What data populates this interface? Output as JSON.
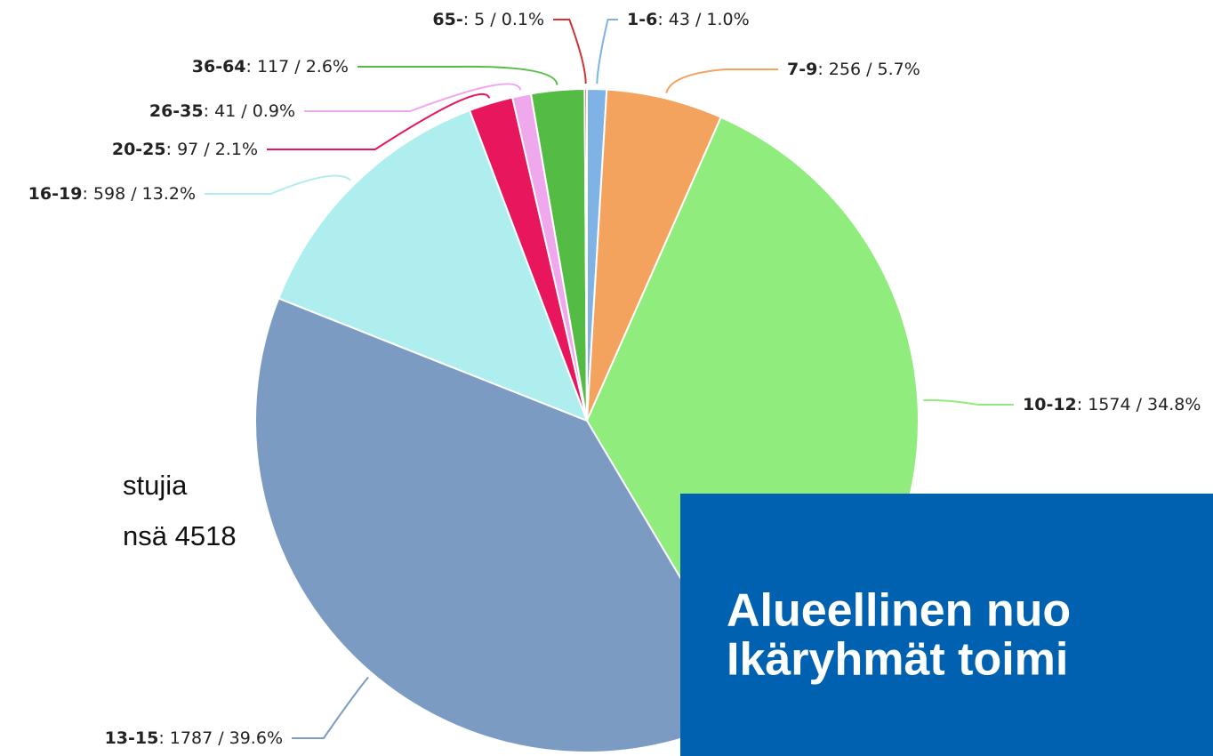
{
  "chart_data": {
    "type": "pie",
    "categories": [
      "1-6",
      "7-9",
      "10-12",
      "13-15",
      "16-19",
      "20-25",
      "26-35",
      "36-64",
      "65-"
    ],
    "values": [
      43,
      256,
      1574,
      1787,
      598,
      97,
      41,
      117,
      5
    ],
    "value_labels": [
      ": 43 / 1.0%",
      ": 256 / 5.7%",
      ": 1574 / 34.8%",
      ": 1787 / 39.6%",
      ": 598 / 13.2%",
      ": 97 / 2.1%",
      ": 41 / 0.9%",
      ": 117 / 2.6%",
      ": 5 / 0.1%"
    ],
    "colors": [
      "#7fb3e6",
      "#f4a35e",
      "#90ec7c",
      "#7b9bc2",
      "#aeeeee",
      "#e8175d",
      "#f0a8ec",
      "#54bc44",
      "#d13434"
    ]
  },
  "side_text": [
    "stujia",
    "nsä 4518"
  ],
  "banner": [
    "Alueellinen nuo",
    "Ikäryhmät toimi"
  ]
}
